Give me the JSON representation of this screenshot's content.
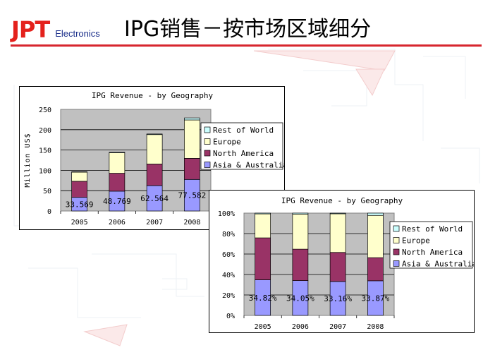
{
  "header": {
    "logo_text": "JPT",
    "logo_sub": "Electronics",
    "title": "IPG销售－按市场区域细分"
  },
  "colors": {
    "brand_red": "#e4211c",
    "brand_blue": "#1a2e8a",
    "rule": "#d7262e",
    "plot_bg": "#c0c0c0"
  },
  "chart_data": [
    {
      "type": "bar",
      "stacked": true,
      "title": "IPG Revenue - by Geography",
      "ylabel": "Million US$",
      "xlabel": "",
      "categories": [
        "2005",
        "2006",
        "2007",
        "2008"
      ],
      "ylim": [
        0,
        250
      ],
      "yticks": [
        "0",
        "50",
        "100",
        "150",
        "200",
        "250"
      ],
      "series": [
        {
          "name": "Asia & Australia",
          "color": "#9999ff",
          "values": [
            33.569,
            48.769,
            62.564,
            77.582
          ]
        },
        {
          "name": "North America",
          "color": "#993366",
          "values": [
            39.5,
            44.0,
            53.0,
            52.0
          ]
        },
        {
          "name": "Europe",
          "color": "#ffffcc",
          "values": [
            22.5,
            50.2,
            72.4,
            94.4
          ]
        },
        {
          "name": "Rest of World",
          "color": "#ccffff",
          "values": [
            1.0,
            1.5,
            1.5,
            5.0
          ]
        }
      ],
      "data_labels": [
        "33.569",
        "48.769",
        "62.564",
        "77.582"
      ],
      "legend": [
        "Rest of World",
        "Europe",
        "North America",
        "Asia & Australia"
      ],
      "grid": true,
      "legend_position": "right"
    },
    {
      "type": "bar",
      "stacked": true,
      "percent": true,
      "title": "IPG Revenue - by Geography",
      "ylabel": "",
      "xlabel": "",
      "categories": [
        "2005",
        "2006",
        "2007",
        "2008"
      ],
      "ylim": [
        0,
        100
      ],
      "yticks": [
        "0%",
        "20%",
        "40%",
        "60%",
        "80%",
        "100%"
      ],
      "series": [
        {
          "name": "Asia & Australia",
          "color": "#9999ff",
          "values": [
            34.82,
            34.05,
            33.16,
            33.87
          ]
        },
        {
          "name": "North America",
          "color": "#993366",
          "values": [
            41.0,
            30.7,
            28.4,
            22.6
          ]
        },
        {
          "name": "Europe",
          "color": "#ffffcc",
          "values": [
            23.4,
            34.2,
            37.8,
            41.3
          ]
        },
        {
          "name": "Rest of World",
          "color": "#ccffff",
          "values": [
            0.78,
            1.05,
            0.64,
            2.23
          ]
        }
      ],
      "data_labels": [
        "34.82%",
        "34.05%",
        "33.16%",
        "33.87%"
      ],
      "legend": [
        "Rest of World",
        "Europe",
        "North America",
        "Asia & Australia"
      ],
      "grid": true,
      "legend_position": "right"
    }
  ]
}
